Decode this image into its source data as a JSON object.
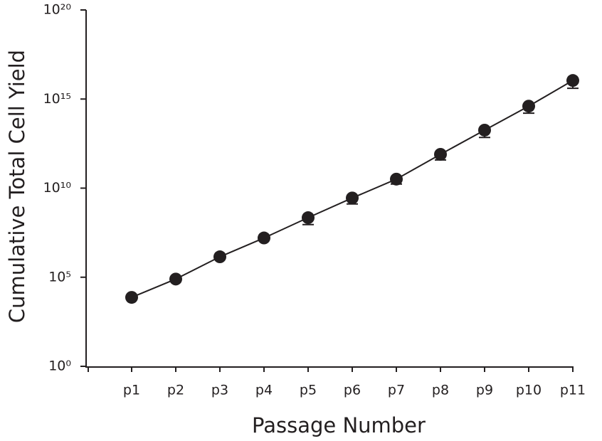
{
  "chart_data": {
    "type": "line",
    "x_label": "Passage Number",
    "y_label": "Cumulative Total Cell Yield",
    "categories": [
      "p1",
      "p2",
      "p3",
      "p4",
      "p5",
      "p6",
      "p7",
      "p8",
      "p9",
      "p10",
      "p11"
    ],
    "series": [
      {
        "color": "#231f20",
        "values": [
          7400,
          79000,
          1400000,
          16000000,
          220000000,
          2800000000,
          32000000000,
          790000000000,
          18000000000000,
          400000000000000,
          11000000000000000
        ],
        "errors": [
          null,
          null,
          null,
          null,
          130000000,
          1500000000,
          15000000000,
          410000000000,
          11000000000000,
          240000000000000,
          7000000000000000
        ]
      }
    ],
    "log_y": true,
    "ylim": [
      1,
      1e+20
    ],
    "yticks": [
      {
        "value": 1,
        "label": "10⁰"
      },
      {
        "value": 100000,
        "label": "10⁵"
      },
      {
        "value": 10000000000,
        "label": "10¹⁰"
      },
      {
        "value": 1000000000000000,
        "label": "10¹⁵"
      },
      {
        "value": 1e+20,
        "label": "10²⁰"
      }
    ],
    "grid": false
  }
}
